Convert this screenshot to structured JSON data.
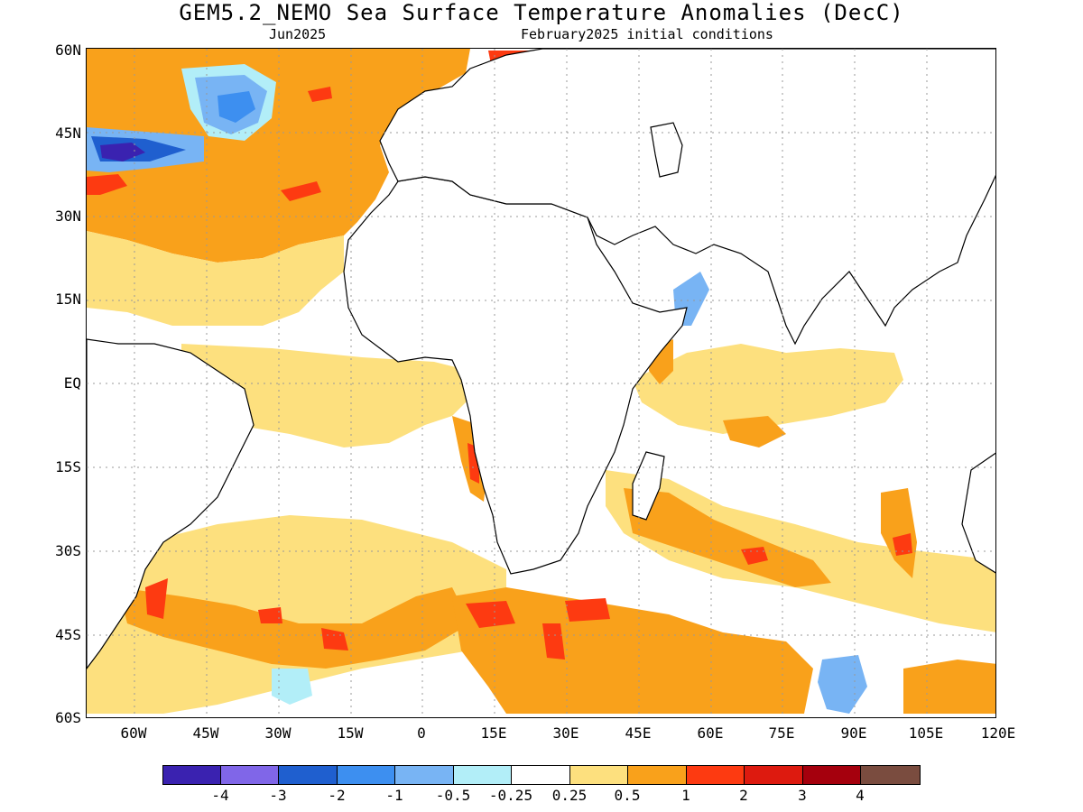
{
  "title": "GEM5.2_NEMO Sea Surface Temperature Anomalies (DecC)",
  "subtitle_left": "Jun2025",
  "subtitle_right": "February2025 initial conditions",
  "lat_labels": [
    "60N",
    "45N",
    "30N",
    "15N",
    "EQ",
    "15S",
    "30S",
    "45S",
    "60S"
  ],
  "lon_labels": [
    "60W",
    "45W",
    "30W",
    "15W",
    "0",
    "15E",
    "30E",
    "45E",
    "60E",
    "75E",
    "90E",
    "105E",
    "120E"
  ],
  "colorbar": {
    "colors": [
      "#3a22b0",
      "#8066e8",
      "#1f5fcf",
      "#3d8ff0",
      "#78b4f4",
      "#b2eef8",
      "#ffffff",
      "#fde07e",
      "#f9a11b",
      "#fd3a11",
      "#dd1a0f",
      "#a5000d",
      "#7a4c3f"
    ],
    "labels": [
      "-4",
      "-3",
      "-2",
      "-1",
      "-0.5",
      "-0.25",
      "0.25",
      "0.5",
      "1",
      "2",
      "3",
      "4"
    ]
  },
  "legend_colors": {
    "neg_strong": "#3a22b0",
    "neg_mid": "#3d8ff0",
    "neg_light": "#78b4f4",
    "neg_faint": "#b2eef8",
    "neutral": "#ffffff",
    "pos_faint": "#fde07e",
    "pos_mid": "#f9a11b",
    "pos_strong": "#fd3a11"
  }
}
